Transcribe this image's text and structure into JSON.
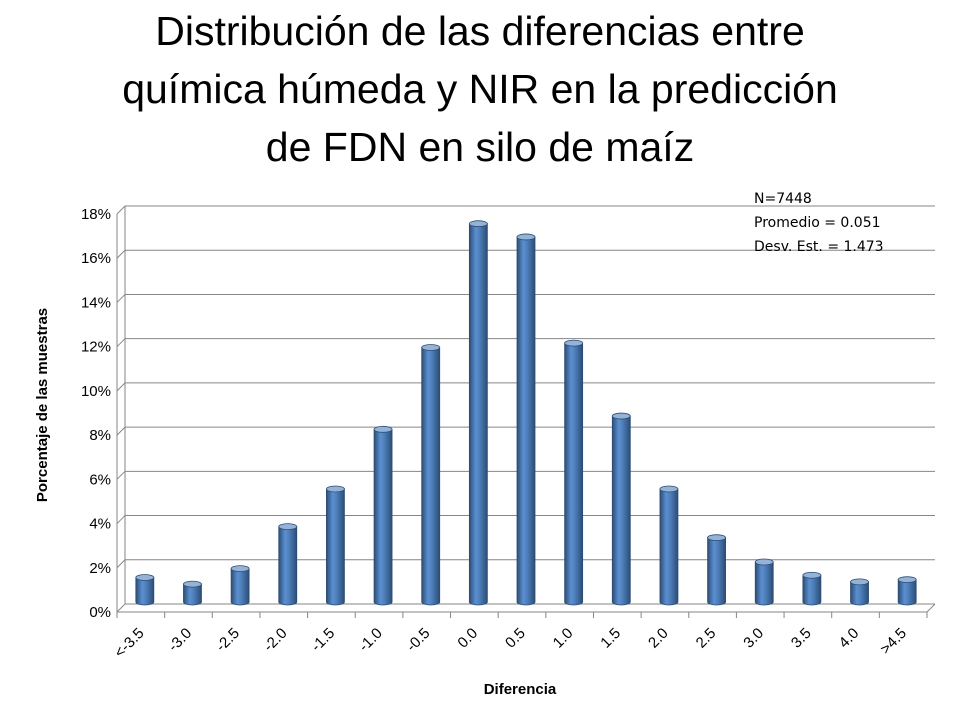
{
  "title_lines": [
    "Distribución de las diferencias entre",
    "química húmeda y NIR en la predicción",
    "de FDN en silo de maíz"
  ],
  "stats": {
    "n": "N=7448",
    "mean": "Promedio = 0.051",
    "sd": "Desv. Est. = 1.473"
  },
  "colors": {
    "bar_main": "#4f81bd",
    "bar_dark": "#2c4d75",
    "bar_light": "#95b3d7",
    "grid": "#868686"
  },
  "chart_data": {
    "type": "bar",
    "title": "Distribución de las diferencias entre química húmeda y NIR en la predicción de FDN en silo de maíz",
    "xlabel": "Diferencia",
    "ylabel": "Porcentaje de las muestras",
    "categories": [
      "<-3.5",
      "-3.0",
      "-2.5",
      "-2.0",
      "-1.5",
      "-1.0",
      "-0.5",
      "0.0",
      "0.5",
      "1.0",
      "1.5",
      "2.0",
      "2.5",
      "3.0",
      "3.5",
      "4.0",
      ">4.5"
    ],
    "values": [
      1.2,
      0.9,
      1.6,
      3.5,
      5.2,
      7.9,
      11.6,
      17.2,
      16.6,
      11.8,
      8.5,
      5.2,
      3.0,
      1.9,
      1.3,
      1.0,
      1.1
    ],
    "yticks": [
      "0%",
      "2%",
      "4%",
      "6%",
      "8%",
      "10%",
      "12%",
      "14%",
      "16%",
      "18%"
    ],
    "ylim": [
      0,
      18
    ],
    "grid": true,
    "legend": "none"
  }
}
